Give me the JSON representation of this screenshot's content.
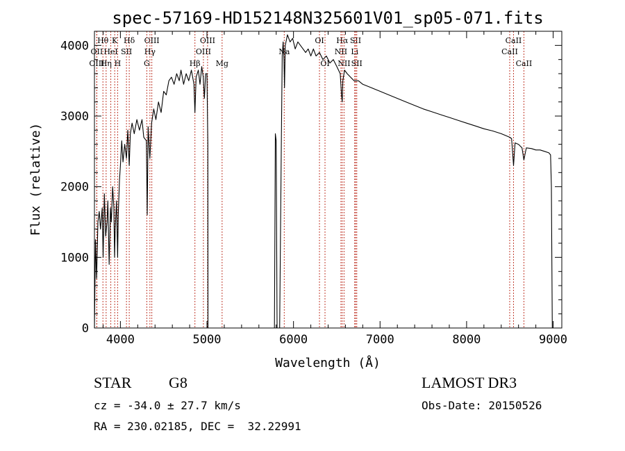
{
  "chart_data": {
    "type": "line",
    "title": "spec-57169-HD152148N325601V01_sp05-071.fits",
    "xlabel": "Wavelength (Å)",
    "ylabel": "Flux (relative)",
    "xlim": [
      3700,
      9100
    ],
    "ylim": [
      0,
      4200
    ],
    "xticks": [
      4000,
      5000,
      6000,
      7000,
      8000,
      9000
    ],
    "yticks": [
      0,
      1000,
      2000,
      3000,
      4000
    ],
    "line_color": "#000000",
    "marker_color": "#c0392b",
    "spectrum": [
      [
        3700,
        0
      ],
      [
        3712,
        1250
      ],
      [
        3725,
        700
      ],
      [
        3740,
        1500
      ],
      [
        3755,
        1650
      ],
      [
        3770,
        1400
      ],
      [
        3790,
        1700
      ],
      [
        3800,
        1000
      ],
      [
        3815,
        1900
      ],
      [
        3830,
        1300
      ],
      [
        3845,
        1500
      ],
      [
        3855,
        1800
      ],
      [
        3870,
        900
      ],
      [
        3885,
        1700
      ],
      [
        3895,
        1500
      ],
      [
        3910,
        2000
      ],
      [
        3925,
        1700
      ],
      [
        3933,
        1000
      ],
      [
        3940,
        1400
      ],
      [
        3955,
        1800
      ],
      [
        3968,
        1000
      ],
      [
        3975,
        1600
      ],
      [
        3990,
        2100
      ],
      [
        4000,
        2300
      ],
      [
        4015,
        2650
      ],
      [
        4030,
        2350
      ],
      [
        4050,
        2600
      ],
      [
        4070,
        2400
      ],
      [
        4085,
        2800
      ],
      [
        4102,
        2300
      ],
      [
        4115,
        2750
      ],
      [
        4135,
        2900
      ],
      [
        4160,
        2750
      ],
      [
        4190,
        2950
      ],
      [
        4220,
        2800
      ],
      [
        4250,
        2950
      ],
      [
        4270,
        2700
      ],
      [
        4300,
        2650
      ],
      [
        4310,
        1600
      ],
      [
        4320,
        2850
      ],
      [
        4340,
        2400
      ],
      [
        4360,
        2900
      ],
      [
        4385,
        3100
      ],
      [
        4410,
        2950
      ],
      [
        4440,
        3200
      ],
      [
        4470,
        3050
      ],
      [
        4500,
        3350
      ],
      [
        4530,
        3300
      ],
      [
        4560,
        3500
      ],
      [
        4590,
        3550
      ],
      [
        4620,
        3450
      ],
      [
        4650,
        3600
      ],
      [
        4680,
        3500
      ],
      [
        4700,
        3650
      ],
      [
        4730,
        3450
      ],
      [
        4760,
        3600
      ],
      [
        4790,
        3500
      ],
      [
        4820,
        3650
      ],
      [
        4850,
        3450
      ],
      [
        4861,
        3050
      ],
      [
        4875,
        3550
      ],
      [
        4900,
        3650
      ],
      [
        4920,
        3450
      ],
      [
        4940,
        3700
      ],
      [
        4957,
        3550
      ],
      [
        4970,
        3250
      ],
      [
        4985,
        3600
      ],
      [
        5000,
        3600
      ],
      [
        5010,
        2600
      ],
      [
        5012,
        0
      ],
      [
        5780,
        0
      ],
      [
        5790,
        2750
      ],
      [
        5800,
        2650
      ],
      [
        5810,
        0
      ],
      [
        5840,
        0
      ],
      [
        5860,
        2700
      ],
      [
        5870,
        3850
      ],
      [
        5880,
        4050
      ],
      [
        5890,
        3800
      ],
      [
        5896,
        3400
      ],
      [
        5905,
        4000
      ],
      [
        5930,
        4150
      ],
      [
        5960,
        4050
      ],
      [
        5990,
        4100
      ],
      [
        6020,
        3950
      ],
      [
        6050,
        4050
      ],
      [
        6080,
        4000
      ],
      [
        6110,
        3950
      ],
      [
        6140,
        3900
      ],
      [
        6170,
        3950
      ],
      [
        6200,
        3850
      ],
      [
        6230,
        3950
      ],
      [
        6260,
        3850
      ],
      [
        6300,
        3900
      ],
      [
        6340,
        3800
      ],
      [
        6380,
        3850
      ],
      [
        6420,
        3750
      ],
      [
        6460,
        3800
      ],
      [
        6500,
        3700
      ],
      [
        6540,
        3600
      ],
      [
        6555,
        3300
      ],
      [
        6563,
        3200
      ],
      [
        6570,
        3500
      ],
      [
        6590,
        3650
      ],
      [
        6620,
        3600
      ],
      [
        6660,
        3550
      ],
      [
        6700,
        3500
      ],
      [
        6750,
        3500
      ],
      [
        6800,
        3450
      ],
      [
        6900,
        3400
      ],
      [
        7000,
        3350
      ],
      [
        7100,
        3300
      ],
      [
        7200,
        3250
      ],
      [
        7300,
        3200
      ],
      [
        7400,
        3150
      ],
      [
        7500,
        3100
      ],
      [
        7600,
        3060
      ],
      [
        7700,
        3020
      ],
      [
        7800,
        2980
      ],
      [
        7900,
        2940
      ],
      [
        8000,
        2900
      ],
      [
        8100,
        2860
      ],
      [
        8200,
        2820
      ],
      [
        8300,
        2790
      ],
      [
        8400,
        2750
      ],
      [
        8498,
        2700
      ],
      [
        8520,
        2680
      ],
      [
        8542,
        2300
      ],
      [
        8560,
        2620
      ],
      [
        8600,
        2600
      ],
      [
        8640,
        2550
      ],
      [
        8662,
        2380
      ],
      [
        8690,
        2550
      ],
      [
        8750,
        2540
      ],
      [
        8800,
        2520
      ],
      [
        8850,
        2520
      ],
      [
        8900,
        2500
      ],
      [
        8950,
        2480
      ],
      [
        8970,
        2450
      ],
      [
        8980,
        2000
      ],
      [
        8990,
        0
      ]
    ],
    "lines": [
      {
        "name": "Hθ",
        "wl": 3798,
        "row": 0
      },
      {
        "name": "OII",
        "wl": 3727,
        "row": 1
      },
      {
        "name": "OIII",
        "wl": 3727,
        "row": 2
      },
      {
        "name": "K",
        "wl": 3934,
        "row": 0
      },
      {
        "name": "HeI",
        "wl": 3889,
        "row": 1
      },
      {
        "name": "Hη",
        "wl": 3835,
        "row": 2
      },
      {
        "name": "Hδ",
        "wl": 4102,
        "row": 0
      },
      {
        "name": "SII",
        "wl": 4070,
        "row": 1
      },
      {
        "name": "H",
        "wl": 3968,
        "row": 2
      },
      {
        "name": "OIII",
        "wl": 4363,
        "row": 0
      },
      {
        "name": "Hγ",
        "wl": 4341,
        "row": 1
      },
      {
        "name": "G",
        "wl": 4305,
        "row": 2
      },
      {
        "name": "OIII",
        "wl": 5007,
        "row": 0
      },
      {
        "name": "OIII",
        "wl": 4959,
        "row": 1
      },
      {
        "name": "Hβ",
        "wl": 4861,
        "row": 2
      },
      {
        "name": "Mg",
        "wl": 5175,
        "row": 2
      },
      {
        "name": "Na",
        "wl": 5893,
        "row": 1
      },
      {
        "name": "OI",
        "wl": 6300,
        "row": 0
      },
      {
        "name": "OI",
        "wl": 6364,
        "row": 2
      },
      {
        "name": "Hα",
        "wl": 6563,
        "row": 0
      },
      {
        "name": "NII",
        "wl": 6548,
        "row": 1
      },
      {
        "name": "NII",
        "wl": 6584,
        "row": 2
      },
      {
        "name": "SII",
        "wl": 6717,
        "row": 0
      },
      {
        "name": "Li",
        "wl": 6707,
        "row": 1
      },
      {
        "name": "SII",
        "wl": 6731,
        "row": 2
      },
      {
        "name": "CaII",
        "wl": 8542,
        "row": 0
      },
      {
        "name": "CaII",
        "wl": 8498,
        "row": 1
      },
      {
        "name": "CaII",
        "wl": 8662,
        "row": 2
      }
    ]
  },
  "info": {
    "object_type": "STAR",
    "subclass": "G8",
    "survey": "LAMOST DR3",
    "redshift": "cz = -34.0 ± 27.7 km/s",
    "obs_date": "Obs-Date: 20150526",
    "coords": "RA = 230.02185, DEC =  32.22991"
  }
}
